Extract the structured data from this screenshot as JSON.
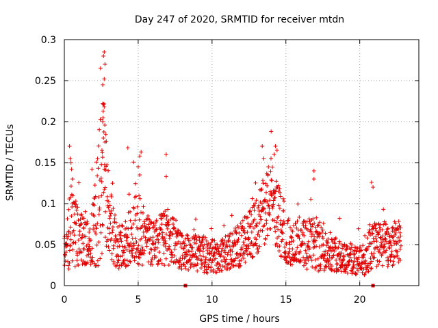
{
  "chart_data": {
    "type": "scatter",
    "title": "Day 247 of 2020, SRMTID for receiver mtdn",
    "xlabel": "GPS time / hours",
    "ylabel": "SRMTID / TECUs",
    "xlim": [
      0,
      24
    ],
    "ylim": [
      0,
      0.3
    ],
    "xticks": [
      0,
      5,
      10,
      15,
      20
    ],
    "xtick_labels": [
      "0",
      "5",
      "10",
      "15",
      "20"
    ],
    "yticks": [
      0,
      0.05,
      0.1,
      0.15,
      0.2,
      0.25,
      0.3
    ],
    "ytick_labels": [
      "0",
      "0.05",
      "0.1",
      "0.15",
      "0.2",
      "0.25",
      "0.3"
    ],
    "grid": true,
    "marker": "plus",
    "color": "#e00000",
    "axis_markers": [
      8.2,
      20.9
    ],
    "envelope": [
      [
        0.0,
        0.04,
        0.03
      ],
      [
        0.3,
        0.06,
        0.06
      ],
      [
        0.5,
        0.075,
        0.08
      ],
      [
        1.0,
        0.06,
        0.05
      ],
      [
        1.5,
        0.05,
        0.04
      ],
      [
        2.0,
        0.07,
        0.06
      ],
      [
        2.3,
        0.1,
        0.12
      ],
      [
        2.7,
        0.13,
        0.15
      ],
      [
        3.0,
        0.09,
        0.08
      ],
      [
        3.5,
        0.05,
        0.04
      ],
      [
        4.0,
        0.045,
        0.04
      ],
      [
        4.5,
        0.06,
        0.06
      ],
      [
        5.0,
        0.07,
        0.07
      ],
      [
        5.5,
        0.06,
        0.05
      ],
      [
        6.0,
        0.05,
        0.04
      ],
      [
        7.0,
        0.06,
        0.05
      ],
      [
        7.5,
        0.05,
        0.04
      ],
      [
        8.0,
        0.04,
        0.03
      ],
      [
        9.0,
        0.04,
        0.035
      ],
      [
        10.0,
        0.035,
        0.03
      ],
      [
        11.0,
        0.04,
        0.03
      ],
      [
        12.0,
        0.05,
        0.04
      ],
      [
        13.0,
        0.07,
        0.05
      ],
      [
        13.5,
        0.09,
        0.06
      ],
      [
        14.0,
        0.11,
        0.07
      ],
      [
        14.5,
        0.08,
        0.06
      ],
      [
        15.0,
        0.055,
        0.04
      ],
      [
        16.0,
        0.05,
        0.04
      ],
      [
        17.0,
        0.05,
        0.05
      ],
      [
        18.0,
        0.04,
        0.03
      ],
      [
        19.0,
        0.035,
        0.03
      ],
      [
        20.0,
        0.03,
        0.025
      ],
      [
        20.5,
        0.04,
        0.04
      ],
      [
        21.0,
        0.05,
        0.04
      ],
      [
        22.0,
        0.05,
        0.04
      ],
      [
        22.8,
        0.055,
        0.035
      ]
    ],
    "peaks": [
      [
        2.45,
        0.265
      ],
      [
        2.6,
        0.245
      ],
      [
        2.65,
        0.28
      ],
      [
        2.7,
        0.285
      ],
      [
        2.75,
        0.27
      ],
      [
        2.7,
        0.252
      ],
      [
        2.6,
        0.222
      ],
      [
        2.7,
        0.218
      ],
      [
        2.6,
        0.2
      ],
      [
        2.65,
        0.18
      ],
      [
        2.75,
        0.175
      ],
      [
        2.55,
        0.165
      ],
      [
        0.35,
        0.17
      ],
      [
        0.4,
        0.155
      ],
      [
        0.45,
        0.15
      ],
      [
        0.55,
        0.13
      ],
      [
        4.3,
        0.168
      ],
      [
        5.1,
        0.158
      ],
      [
        5.2,
        0.163
      ],
      [
        5.0,
        0.145
      ],
      [
        5.1,
        0.135
      ],
      [
        6.9,
        0.16
      ],
      [
        6.9,
        0.133
      ],
      [
        14.0,
        0.188
      ],
      [
        14.3,
        0.17
      ],
      [
        14.4,
        0.165
      ],
      [
        14.2,
        0.16
      ],
      [
        13.4,
        0.17
      ],
      [
        13.5,
        0.155
      ],
      [
        16.9,
        0.14
      ],
      [
        16.9,
        0.13
      ],
      [
        20.8,
        0.126
      ],
      [
        20.9,
        0.12
      ],
      [
        21.6,
        0.093
      ]
    ]
  }
}
